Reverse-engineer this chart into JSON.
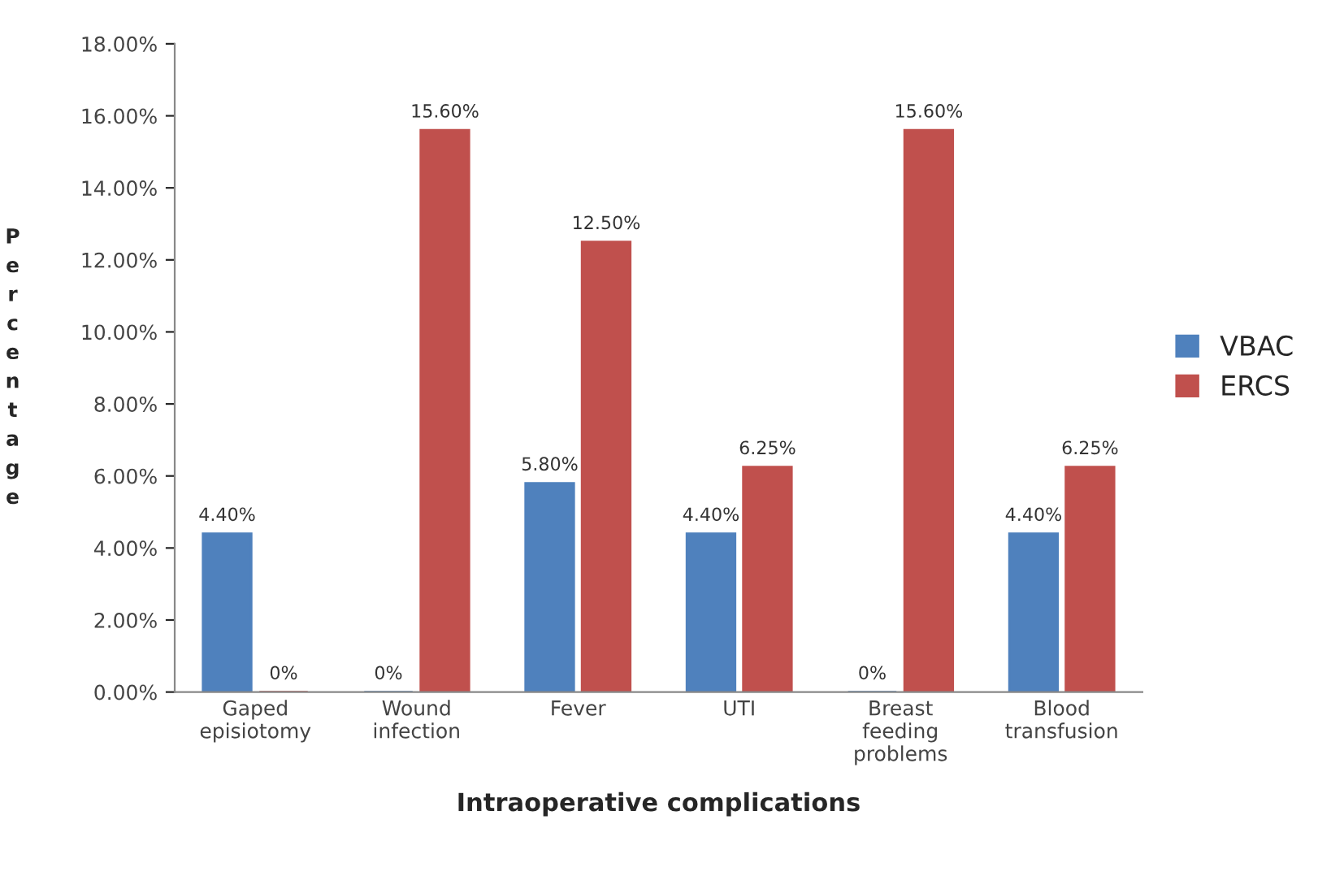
{
  "chart_data": {
    "type": "bar",
    "xlabel": "Intraoperative complications",
    "ylabel": "Percentage",
    "categories": [
      "Gaped\nepisiotomy",
      "Wound\ninfection",
      "Fever",
      "UTI",
      "Breast\nfeeding\nproblems",
      "Blood\ntransfusion"
    ],
    "series": [
      {
        "name": "VBAC",
        "color": "#4f81bd",
        "values": [
          4.4,
          0,
          5.8,
          4.4,
          0,
          4.4
        ],
        "value_labels": [
          "4.40%",
          "0%",
          "5.80%",
          "4.40%",
          "0%",
          "4.40%"
        ]
      },
      {
        "name": "ERCS",
        "color": "#c0504d",
        "values": [
          0,
          15.6,
          12.5,
          6.25,
          15.6,
          6.25
        ],
        "value_labels": [
          "0%",
          "15.60%",
          "12.50%",
          "6.25%",
          "15.60%",
          "6.25%"
        ]
      }
    ],
    "ylim": [
      0,
      18
    ],
    "yticks": [
      {
        "value": 0,
        "label": "0.00%"
      },
      {
        "value": 2,
        "label": "2.00%"
      },
      {
        "value": 4,
        "label": "4.00%"
      },
      {
        "value": 6,
        "label": "6.00%"
      },
      {
        "value": 8,
        "label": "8.00%"
      },
      {
        "value": 10,
        "label": "10.00%"
      },
      {
        "value": 12,
        "label": "12.00%"
      },
      {
        "value": 14,
        "label": "14.00%"
      },
      {
        "value": 16,
        "label": "16.00%"
      },
      {
        "value": 18,
        "label": "18.00%"
      }
    ],
    "grid": false,
    "legend": "right"
  }
}
